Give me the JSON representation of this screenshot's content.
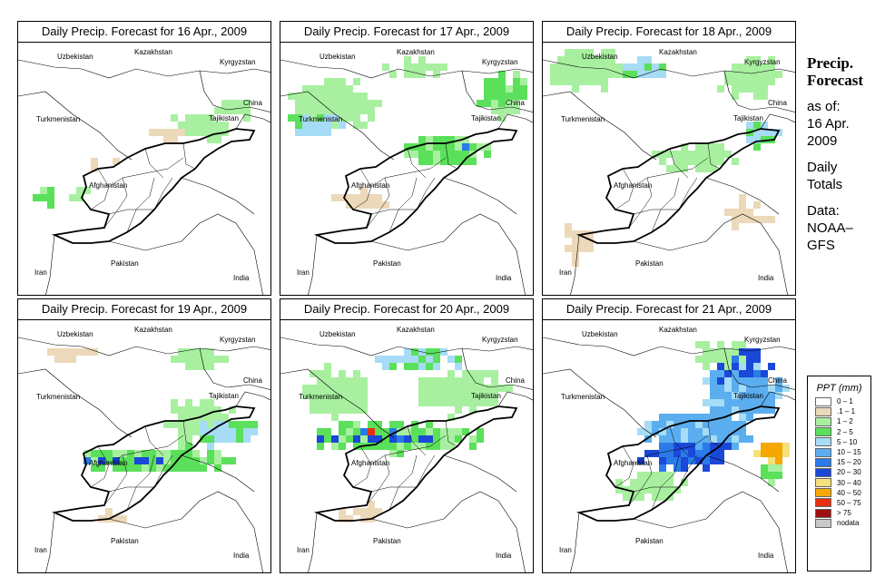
{
  "panels": [
    {
      "title": "Daily Precip. Forecast for  16 Apr., 2009"
    },
    {
      "title": "Daily Precip. Forecast for  17 Apr., 2009"
    },
    {
      "title": "Daily Precip. Forecast for  18 Apr., 2009"
    },
    {
      "title": "Daily Precip. Forecast for  19 Apr., 2009"
    },
    {
      "title": "Daily Precip. Forecast for  20 Apr., 2009"
    },
    {
      "title": "Daily Precip. Forecast for  21 Apr., 2009"
    }
  ],
  "countries": {
    "kazakhstan": "Kazakhstan",
    "uzbekistan": "Uzbekistan",
    "kyrgyzstan": "Kyrgyzstan",
    "china": "China",
    "turkmenistan": "Turkmenistan",
    "tajikistan": "Tajikistan",
    "afghanistan": "Afghanistan",
    "iran": "Iran",
    "pakistan": "Pakistan",
    "india": "India"
  },
  "sidebar": {
    "title_line1": "Precip.",
    "title_line2": "Forecast",
    "asof_line1": "as of:",
    "asof_line2": "16 Apr.",
    "asof_line3": "2009",
    "totals_line1": "Daily",
    "totals_line2": "Totals",
    "data_line1": "Data:",
    "data_line2": "NOAA–",
    "data_line3": "GFS"
  },
  "legend": {
    "title": "PPT (mm)",
    "items": [
      {
        "label": "0 – 1",
        "color": "#ffffff"
      },
      {
        "label": ".1 – 1",
        "color": "#ecd9b9"
      },
      {
        "label": "1 – 2",
        "color": "#a8f0a0"
      },
      {
        "label": "2 – 5",
        "color": "#5ae05a"
      },
      {
        "label": "5 – 10",
        "color": "#a6dcf5"
      },
      {
        "label": "10 – 15",
        "color": "#5aaef0"
      },
      {
        "label": "15 – 20",
        "color": "#2a7ae8"
      },
      {
        "label": "20 – 30",
        "color": "#1a48d8"
      },
      {
        "label": "30 – 40",
        "color": "#f5e07a"
      },
      {
        "label": "40 – 50",
        "color": "#f5a800"
      },
      {
        "label": "50 – 75",
        "color": "#e83010"
      },
      {
        "label": "> 75",
        "color": "#a01010"
      },
      {
        "label": "nodata",
        "color": "#c8c8c8"
      }
    ]
  }
}
